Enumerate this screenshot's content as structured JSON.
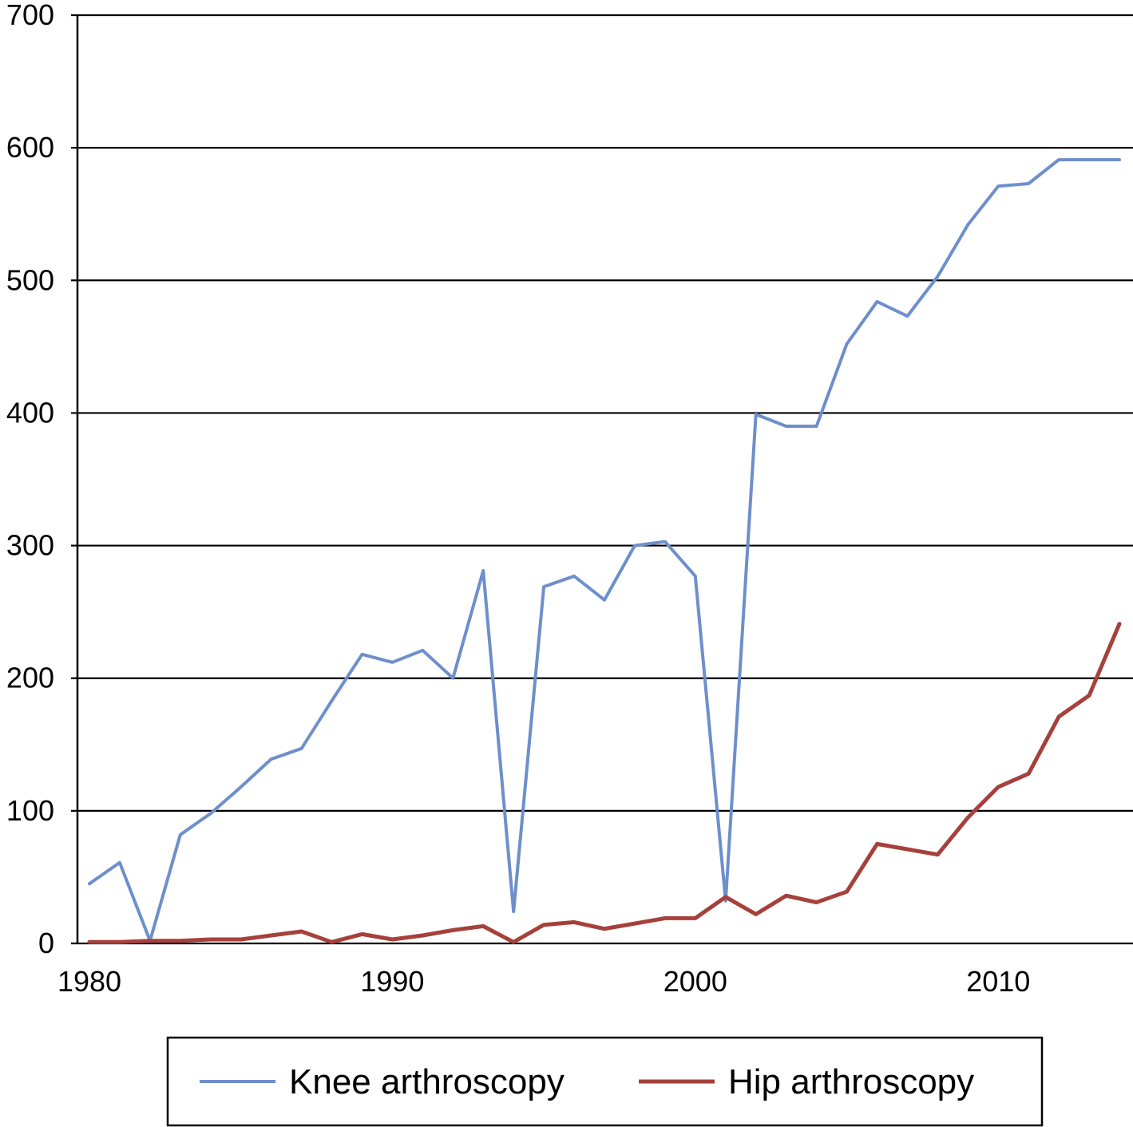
{
  "chart_data": {
    "type": "line",
    "title": "",
    "xlabel": "",
    "ylabel": "",
    "xlim": [
      1980,
      2014
    ],
    "ylim": [
      0,
      700
    ],
    "x_ticks": [
      "1980",
      "1990",
      "2000",
      "2010"
    ],
    "y_ticks": [
      "0",
      "100",
      "200",
      "300",
      "400",
      "500",
      "600",
      "700"
    ],
    "grid": "horizontal",
    "legend_position": "bottom",
    "series": [
      {
        "name": "Knee arthroscopy",
        "color": "#6d8fcb",
        "x": [
          1980,
          1981,
          1982,
          1983,
          1984,
          1985,
          1986,
          1987,
          1988,
          1989,
          1990,
          1991,
          1992,
          1993,
          1994,
          1995,
          1996,
          1997,
          1998,
          1999,
          2000,
          2001,
          2002,
          2003,
          2004,
          2005,
          2006,
          2007,
          2008,
          2009,
          2010,
          2011,
          2012,
          2013,
          2014
        ],
        "values": [
          45,
          61,
          2,
          82,
          98,
          118,
          139,
          147,
          183,
          218,
          212,
          221,
          200,
          281,
          24,
          269,
          277,
          259,
          300,
          303,
          277,
          32,
          399,
          390,
          390,
          452,
          484,
          473,
          503,
          542,
          571,
          573,
          591,
          591,
          591
        ]
      },
      {
        "name": "Hip arthroscopy",
        "color": "#a6403b",
        "x": [
          1980,
          1981,
          1982,
          1983,
          1984,
          1985,
          1986,
          1987,
          1988,
          1989,
          1990,
          1991,
          1992,
          1993,
          1994,
          1995,
          1996,
          1997,
          1998,
          1999,
          2000,
          2001,
          2002,
          2003,
          2004,
          2005,
          2006,
          2007,
          2008,
          2009,
          2010,
          2011,
          2012,
          2013,
          2014
        ],
        "values": [
          1,
          1,
          2,
          2,
          3,
          3,
          6,
          9,
          1,
          7,
          3,
          6,
          10,
          13,
          1,
          14,
          16,
          11,
          15,
          19,
          19,
          35,
          22,
          36,
          31,
          39,
          75,
          71,
          67,
          95,
          118,
          128,
          171,
          187,
          241
        ]
      }
    ]
  }
}
